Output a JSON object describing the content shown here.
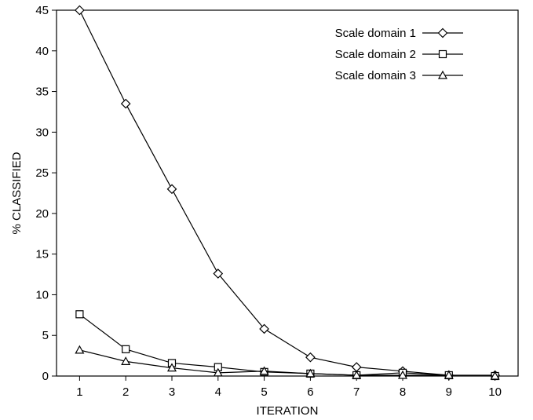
{
  "chart_data": {
    "type": "line",
    "xlabel": "ITERATION",
    "ylabel": "% CLASSIFIED",
    "xlim": [
      0.5,
      10.5
    ],
    "ylim": [
      0,
      45
    ],
    "x": [
      1,
      2,
      3,
      4,
      5,
      6,
      7,
      8,
      9,
      10
    ],
    "x_ticks": [
      1,
      2,
      3,
      4,
      5,
      6,
      7,
      8,
      9,
      10
    ],
    "y_ticks": [
      0,
      5,
      10,
      15,
      20,
      25,
      30,
      35,
      40,
      45
    ],
    "grid": false,
    "legend_position": "top-right",
    "series": [
      {
        "name": "Scale domain 1",
        "marker": "diamond",
        "values": [
          45,
          33.5,
          23,
          12.6,
          5.8,
          2.3,
          1.1,
          0.6,
          0.1,
          0.1
        ]
      },
      {
        "name": "Scale domain 2",
        "marker": "square",
        "values": [
          7.6,
          3.3,
          1.6,
          1.1,
          0.5,
          0.3,
          0.1,
          0.4,
          0.1,
          0.0
        ]
      },
      {
        "name": "Scale domain 3",
        "marker": "triangle",
        "values": [
          3.2,
          1.8,
          1.0,
          0.4,
          0.6,
          0.3,
          0.1,
          0.1,
          0.1,
          0.0
        ]
      }
    ]
  }
}
